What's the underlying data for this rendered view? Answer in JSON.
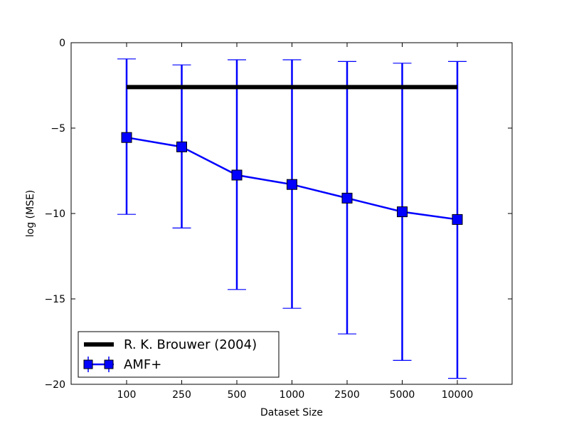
{
  "chart_data": {
    "type": "line",
    "title": "",
    "xlabel": "Dataset Size",
    "ylabel": "log (MSE)",
    "categories": [
      "100",
      "250",
      "500",
      "1000",
      "2500",
      "5000",
      "10000"
    ],
    "ylim": [
      -20,
      0
    ],
    "yticks": [
      0,
      -5,
      -10,
      -15,
      -20
    ],
    "ytick_labels": [
      "0",
      "−5",
      "−10",
      "−15",
      "−20"
    ],
    "grid": false,
    "legend_position": "lower-left",
    "series": [
      {
        "name": "R. K. Brouwer (2004)",
        "color": "#000000",
        "style": "thick-line",
        "values": [
          -2.6,
          -2.6,
          -2.6,
          -2.6,
          -2.6,
          -2.6,
          -2.6
        ]
      },
      {
        "name": "AMF+",
        "color": "#0000ff",
        "style": "line-square-marker-errorbars",
        "values": [
          -5.55,
          -6.1,
          -7.75,
          -8.3,
          -9.1,
          -9.9,
          -10.35
        ],
        "err_upper": [
          -0.95,
          -1.3,
          -1.0,
          -1.0,
          -1.1,
          -1.2,
          -1.1
        ],
        "err_lower": [
          -10.05,
          -10.85,
          -14.45,
          -15.55,
          -17.05,
          -18.6,
          -19.65
        ]
      }
    ]
  }
}
